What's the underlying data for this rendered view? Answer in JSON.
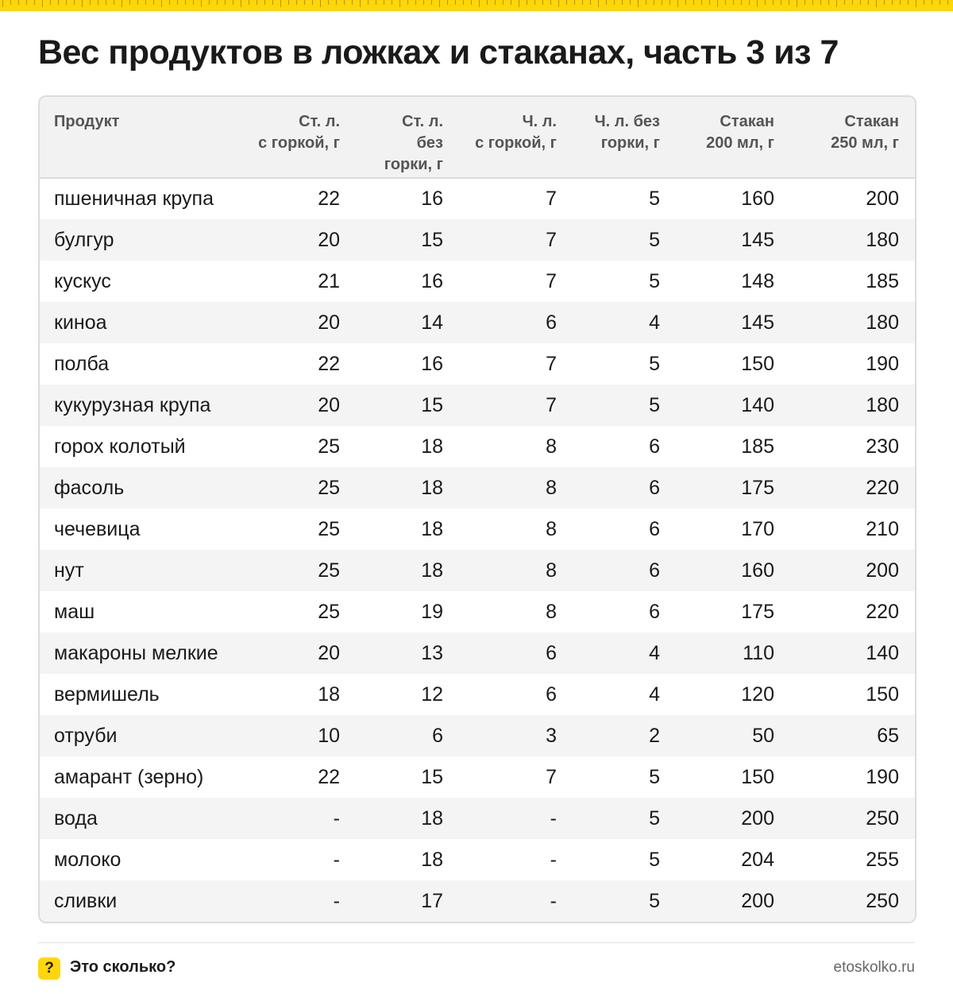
{
  "title": "Вес продуктов в ложках и стаканах, часть 3 из 7",
  "colors": {
    "accent": "#ffd60a",
    "header_bg": "#f2f2f2",
    "stripe_bg": "#f4f4f4",
    "border": "#dcdcdc"
  },
  "table": {
    "headers": [
      {
        "l1": "Продукт",
        "l2": "",
        "l3": ""
      },
      {
        "l1": "Ст. л.",
        "l2": "с горкой, г",
        "l3": ""
      },
      {
        "l1": "Ст. л.",
        "l2": "без",
        "l3": "горки, г"
      },
      {
        "l1": "Ч. л.",
        "l2": "с горкой, г",
        "l3": ""
      },
      {
        "l1": "Ч. л. без",
        "l2": "горки, г",
        "l3": ""
      },
      {
        "l1": "Стакан",
        "l2": "200 мл, г",
        "l3": ""
      },
      {
        "l1": "Стакан",
        "l2": "250 мл, г",
        "l3": ""
      }
    ],
    "rows": [
      [
        "пшеничная крупа",
        "22",
        "16",
        "7",
        "5",
        "160",
        "200"
      ],
      [
        "булгур",
        "20",
        "15",
        "7",
        "5",
        "145",
        "180"
      ],
      [
        "кускус",
        "21",
        "16",
        "7",
        "5",
        "148",
        "185"
      ],
      [
        "киноа",
        "20",
        "14",
        "6",
        "4",
        "145",
        "180"
      ],
      [
        "полба",
        "22",
        "16",
        "7",
        "5",
        "150",
        "190"
      ],
      [
        "кукурузная крупа",
        "20",
        "15",
        "7",
        "5",
        "140",
        "180"
      ],
      [
        "горох колотый",
        "25",
        "18",
        "8",
        "6",
        "185",
        "230"
      ],
      [
        "фасоль",
        "25",
        "18",
        "8",
        "6",
        "175",
        "220"
      ],
      [
        "чечевица",
        "25",
        "18",
        "8",
        "6",
        "170",
        "210"
      ],
      [
        "нут",
        "25",
        "18",
        "8",
        "6",
        "160",
        "200"
      ],
      [
        "маш",
        "25",
        "19",
        "8",
        "6",
        "175",
        "220"
      ],
      [
        "макароны мелкие",
        "20",
        "13",
        "6",
        "4",
        "110",
        "140"
      ],
      [
        "вермишель",
        "18",
        "12",
        "6",
        "4",
        "120",
        "150"
      ],
      [
        "отруби",
        "10",
        "6",
        "3",
        "2",
        "50",
        "65"
      ],
      [
        "амарант (зерно)",
        "22",
        "15",
        "7",
        "5",
        "150",
        "190"
      ],
      [
        "вода",
        "-",
        "18",
        "-",
        "5",
        "200",
        "250"
      ],
      [
        "молоко",
        "-",
        "18",
        "-",
        "5",
        "204",
        "255"
      ],
      [
        "сливки",
        "-",
        "17",
        "-",
        "5",
        "200",
        "250"
      ]
    ]
  },
  "footer": {
    "badge": "?",
    "brand": "Это сколько?",
    "site": "etoskolko.ru"
  }
}
